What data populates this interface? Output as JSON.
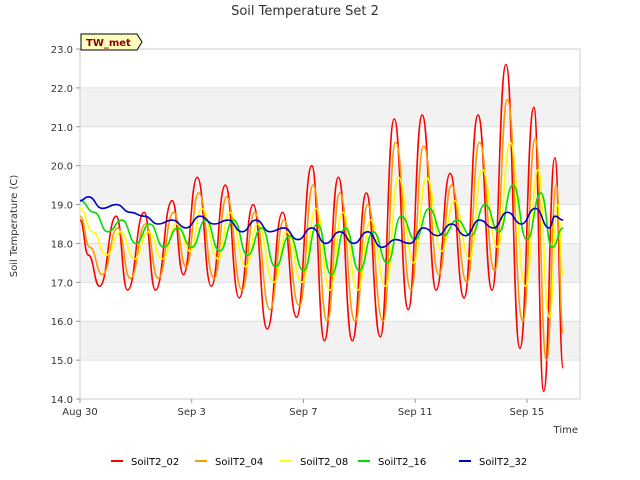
{
  "chart_data": {
    "type": "line",
    "title": "Soil Temperature Set 2",
    "xlabel": "Time",
    "ylabel": "Soil Temperature (C)",
    "badge": "TW_met",
    "ylim": [
      14.0,
      23.0
    ],
    "y_ticks": [
      "14.0",
      "15.0",
      "16.0",
      "17.0",
      "18.0",
      "19.0",
      "20.0",
      "21.0",
      "22.0",
      "23.0"
    ],
    "x_ticks": [
      {
        "label": "Aug 30",
        "day": 0
      },
      {
        "label": "Sep 3",
        "day": 4
      },
      {
        "label": "Sep 7",
        "day": 8
      },
      {
        "label": "Sep 11",
        "day": 12
      },
      {
        "label": "Sep 15",
        "day": 16
      }
    ],
    "xlim_days": [
      0,
      17.9
    ],
    "grid": "horizontal bands",
    "legend_position": "bottom",
    "series": [
      {
        "name": "SoilT2_02",
        "color": "#ff0000",
        "x": [
          0,
          0.3,
          0.7,
          1.3,
          1.7,
          2.3,
          2.7,
          3.3,
          3.7,
          4.2,
          4.7,
          5.2,
          5.7,
          6.2,
          6.7,
          7.25,
          7.75,
          8.3,
          8.75,
          9.25,
          9.75,
          10.25,
          10.75,
          11.25,
          11.75,
          12.25,
          12.75,
          13.25,
          13.75,
          14.25,
          14.75,
          15.25,
          15.75,
          16.25,
          16.6,
          17.0,
          17.3
        ],
        "y": [
          18.6,
          17.7,
          16.9,
          18.7,
          16.8,
          18.8,
          16.8,
          19.1,
          17.2,
          19.7,
          16.9,
          19.5,
          16.6,
          19.0,
          15.8,
          18.8,
          16.1,
          20.0,
          15.5,
          19.7,
          15.5,
          19.3,
          15.6,
          21.2,
          16.3,
          21.3,
          16.8,
          19.8,
          16.6,
          21.3,
          16.8,
          22.6,
          15.3,
          21.5,
          14.2,
          20.2,
          14.8
        ]
      },
      {
        "name": "SoilT2_04",
        "color": "#ff9900",
        "x": [
          0,
          0.35,
          0.8,
          1.35,
          1.8,
          2.35,
          2.8,
          3.35,
          3.8,
          4.25,
          4.8,
          5.25,
          5.8,
          6.25,
          6.8,
          7.3,
          7.85,
          8.35,
          8.85,
          9.3,
          9.85,
          10.3,
          10.85,
          11.3,
          11.85,
          12.3,
          12.85,
          13.3,
          13.85,
          14.3,
          14.85,
          15.3,
          15.85,
          16.3,
          16.7,
          17.05,
          17.3
        ],
        "y": [
          18.7,
          17.9,
          17.2,
          18.4,
          17.1,
          18.5,
          17.1,
          18.8,
          17.4,
          19.3,
          17.1,
          19.2,
          16.8,
          18.8,
          16.3,
          18.6,
          16.4,
          19.5,
          16.0,
          19.3,
          16.0,
          19.0,
          16.0,
          20.6,
          16.8,
          20.5,
          17.2,
          19.5,
          17.0,
          20.6,
          17.3,
          21.7,
          16.0,
          20.7,
          15.0,
          19.5,
          15.7
        ]
      },
      {
        "name": "SoilT2_08",
        "color": "#ffff00",
        "x": [
          0,
          0.45,
          0.95,
          1.45,
          1.95,
          2.45,
          2.95,
          3.45,
          3.95,
          4.35,
          4.95,
          5.35,
          5.95,
          6.35,
          6.95,
          7.4,
          7.95,
          8.45,
          8.95,
          9.4,
          9.95,
          10.4,
          10.95,
          11.4,
          11.95,
          12.4,
          12.95,
          13.4,
          13.95,
          14.4,
          14.95,
          15.4,
          15.95,
          16.4,
          16.8,
          17.1,
          17.3
        ],
        "y": [
          18.9,
          18.3,
          17.7,
          18.3,
          17.6,
          18.3,
          17.6,
          18.5,
          17.8,
          18.9,
          17.6,
          18.8,
          17.4,
          18.5,
          17.0,
          18.3,
          17.0,
          18.9,
          16.8,
          18.8,
          16.8,
          18.6,
          16.9,
          19.7,
          17.5,
          19.7,
          17.8,
          19.1,
          17.6,
          19.9,
          17.9,
          20.6,
          16.9,
          19.9,
          16.1,
          19.0,
          17.2
        ]
      },
      {
        "name": "SoilT2_16",
        "color": "#00dd00",
        "x": [
          0,
          0.5,
          1.0,
          1.5,
          2.0,
          2.5,
          3.0,
          3.5,
          4.0,
          4.5,
          5.0,
          5.5,
          6.0,
          6.5,
          7.0,
          7.5,
          8.0,
          8.5,
          9.0,
          9.5,
          10.0,
          10.5,
          11.0,
          11.5,
          12.0,
          12.5,
          13.0,
          13.5,
          14.0,
          14.5,
          15.0,
          15.5,
          16.0,
          16.5,
          16.9,
          17.3
        ],
        "y": [
          19.1,
          18.8,
          18.3,
          18.6,
          18.0,
          18.5,
          17.9,
          18.4,
          17.9,
          18.6,
          17.8,
          18.6,
          17.7,
          18.4,
          17.4,
          18.2,
          17.3,
          18.5,
          17.2,
          18.4,
          17.3,
          18.3,
          17.5,
          18.7,
          18.1,
          18.9,
          18.2,
          18.6,
          18.2,
          19.0,
          18.3,
          19.5,
          18.1,
          19.3,
          17.9,
          18.4
        ]
      },
      {
        "name": "SoilT2_32",
        "color": "#0000cc",
        "x": [
          0,
          0.3,
          0.8,
          1.3,
          1.8,
          2.3,
          2.8,
          3.3,
          3.8,
          4.3,
          4.8,
          5.3,
          5.8,
          6.3,
          6.8,
          7.3,
          7.8,
          8.3,
          8.8,
          9.3,
          9.8,
          10.3,
          10.8,
          11.3,
          11.8,
          12.3,
          12.8,
          13.3,
          13.8,
          14.3,
          14.8,
          15.3,
          15.8,
          16.3,
          16.8,
          17.0,
          17.3
        ],
        "y": [
          19.1,
          19.2,
          18.9,
          19.0,
          18.8,
          18.7,
          18.5,
          18.6,
          18.4,
          18.7,
          18.5,
          18.6,
          18.3,
          18.6,
          18.3,
          18.4,
          18.1,
          18.4,
          18.0,
          18.3,
          18.0,
          18.3,
          17.9,
          18.1,
          18.0,
          18.4,
          18.2,
          18.5,
          18.2,
          18.6,
          18.4,
          18.8,
          18.5,
          18.9,
          18.4,
          18.7,
          18.6
        ]
      }
    ]
  }
}
